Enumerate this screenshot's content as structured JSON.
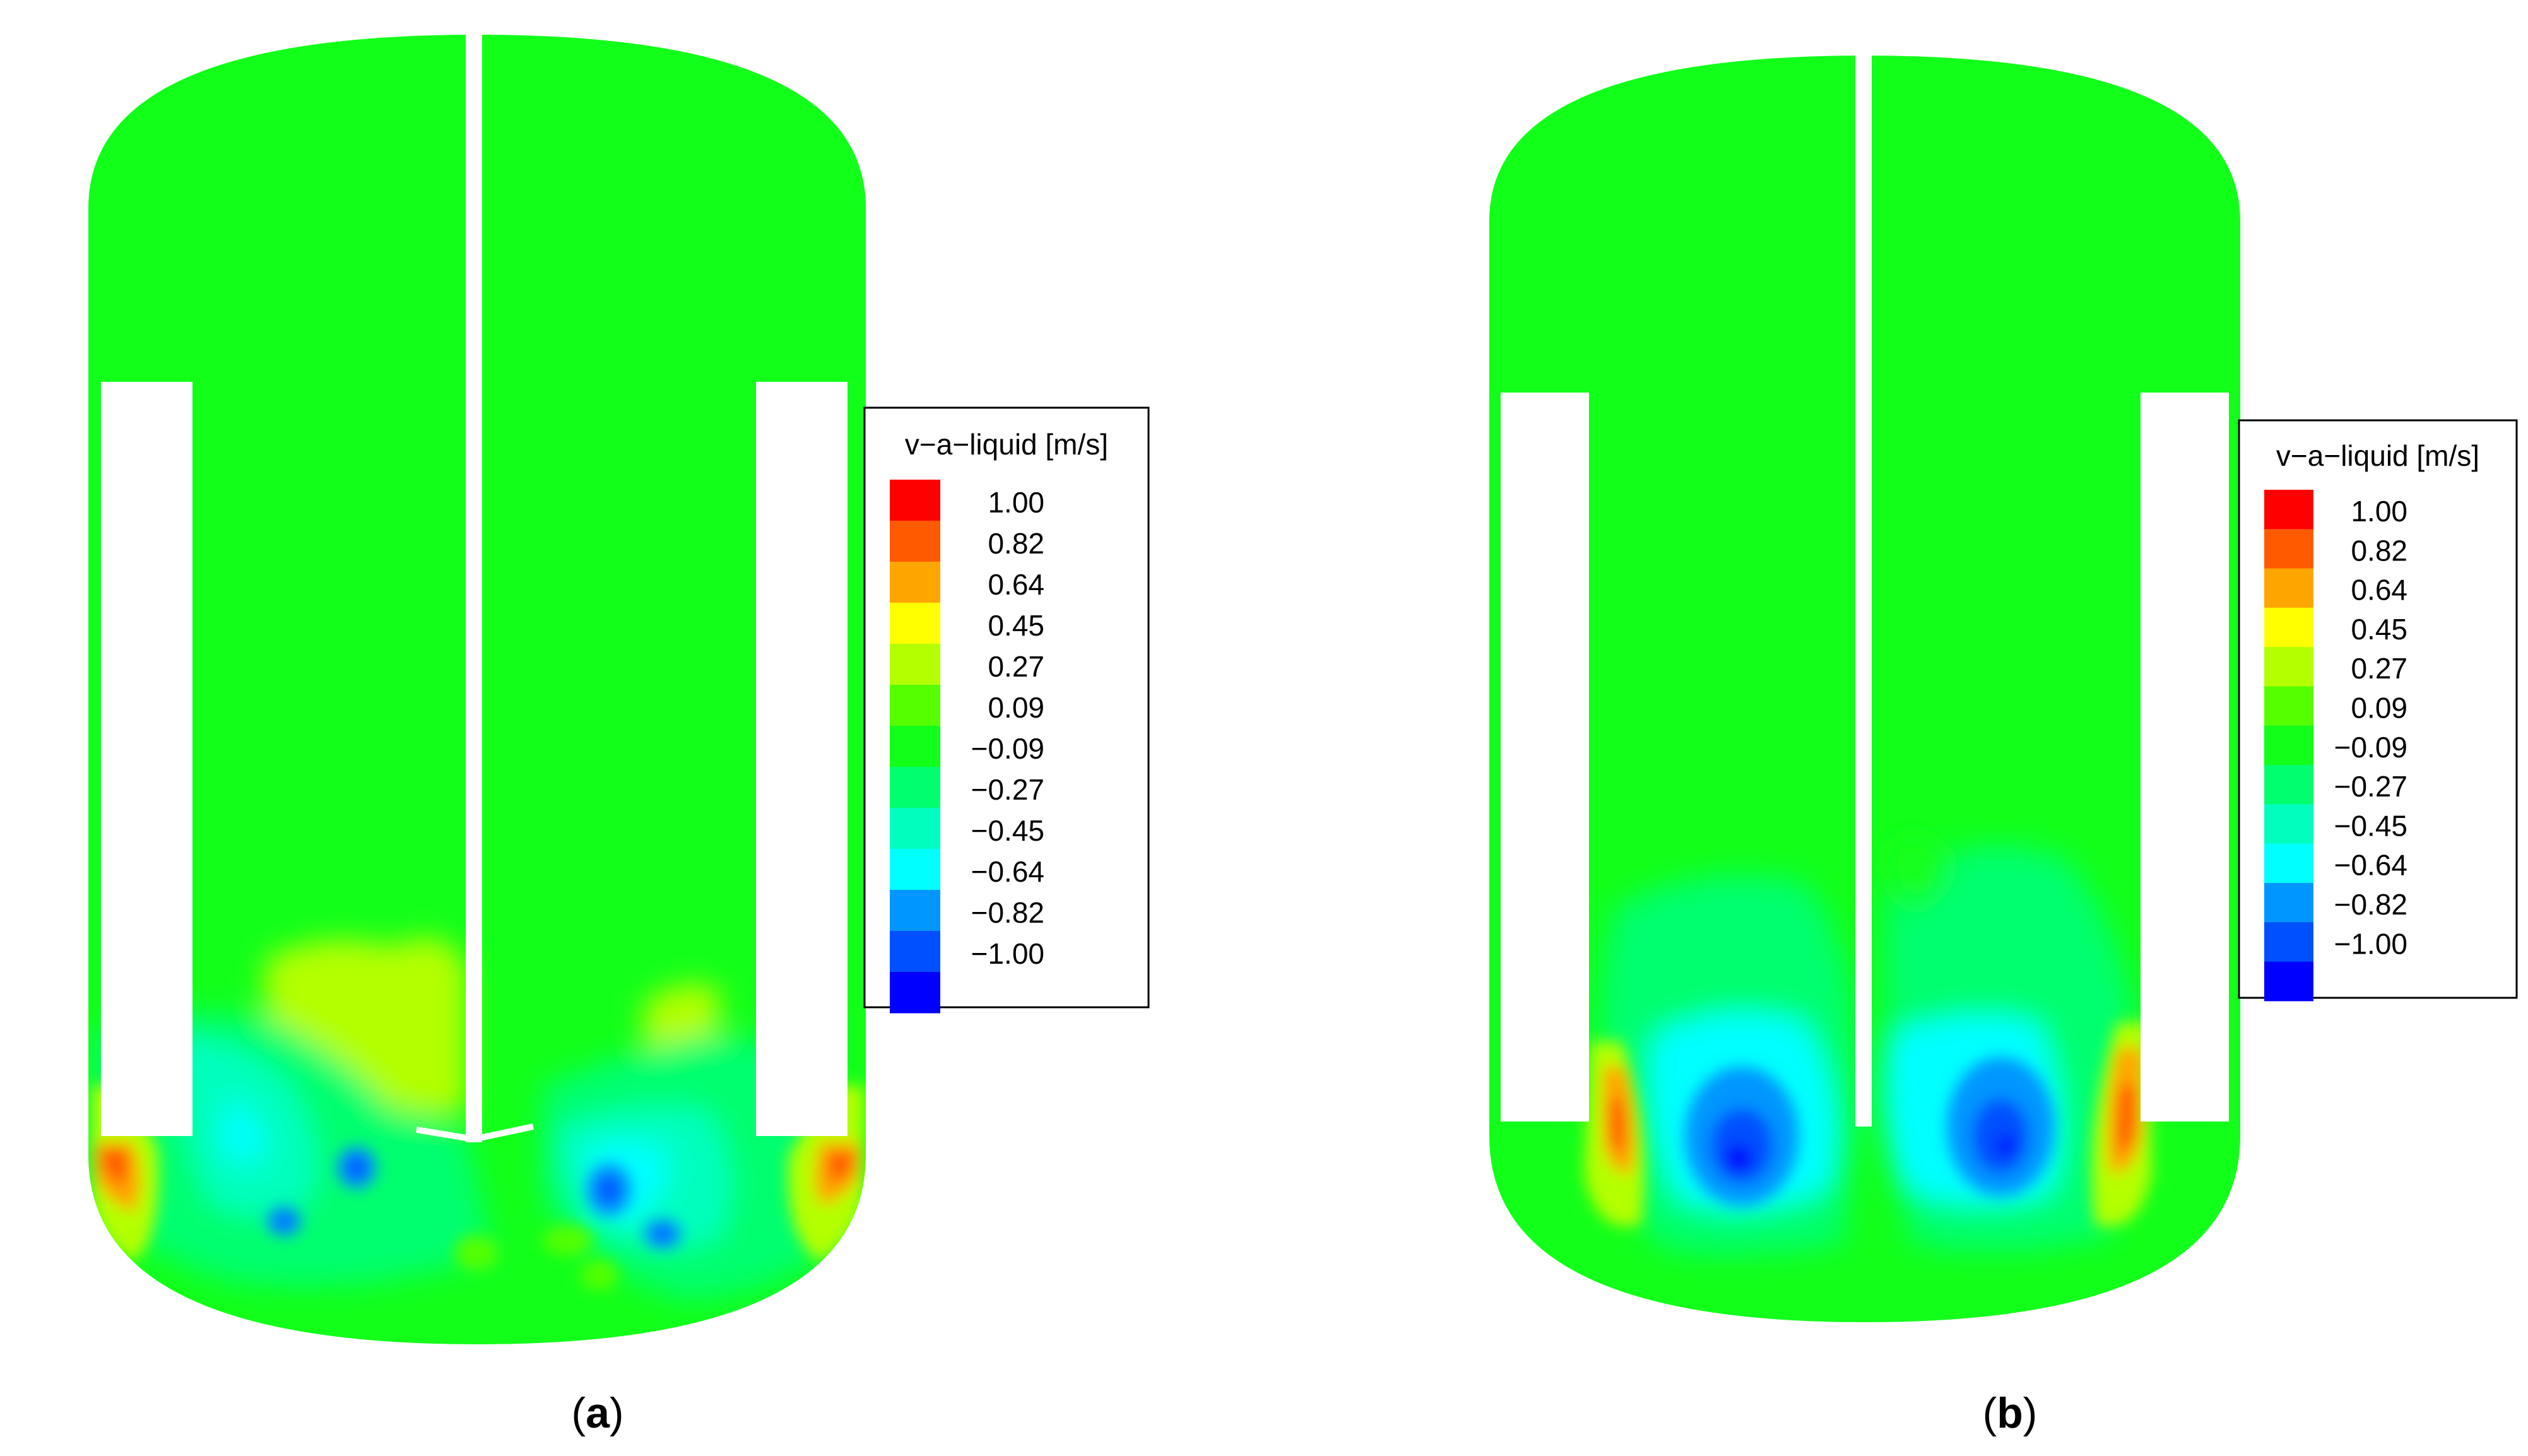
{
  "panels": [
    {
      "id": "a",
      "caption": {
        "open": "(",
        "letter": "a",
        "close": ")"
      },
      "legend": {
        "title": "v−a−liquid [m/s]",
        "levels": [
          "1.00",
          "0.82",
          "0.64",
          "0.45",
          "0.27",
          "0.09",
          "−0.09",
          "−0.27",
          "−0.45",
          "−0.64",
          "−0.82",
          "−1.00"
        ]
      }
    },
    {
      "id": "b",
      "caption": {
        "open": "(",
        "letter": "b",
        "close": ")"
      },
      "legend": {
        "title": "v−a−liquid [m/s]",
        "levels": [
          "1.00",
          "0.82",
          "0.64",
          "0.45",
          "0.27",
          "0.09",
          "−0.09",
          "−0.27",
          "−0.45",
          "−0.64",
          "−0.82",
          "−1.00"
        ]
      }
    }
  ],
  "colors": {
    "scale": [
      "#ff0000",
      "#ff5a00",
      "#ffa500",
      "#ffff00",
      "#b4ff00",
      "#55ff00",
      "#12ff1a",
      "#00ff6e",
      "#00ffbe",
      "#00ffff",
      "#0096ff",
      "#0050ff",
      "#0000ff"
    ],
    "background_fluid": "#12ff1a",
    "baffle": "#ffffff",
    "legend_border": "#000000"
  }
}
